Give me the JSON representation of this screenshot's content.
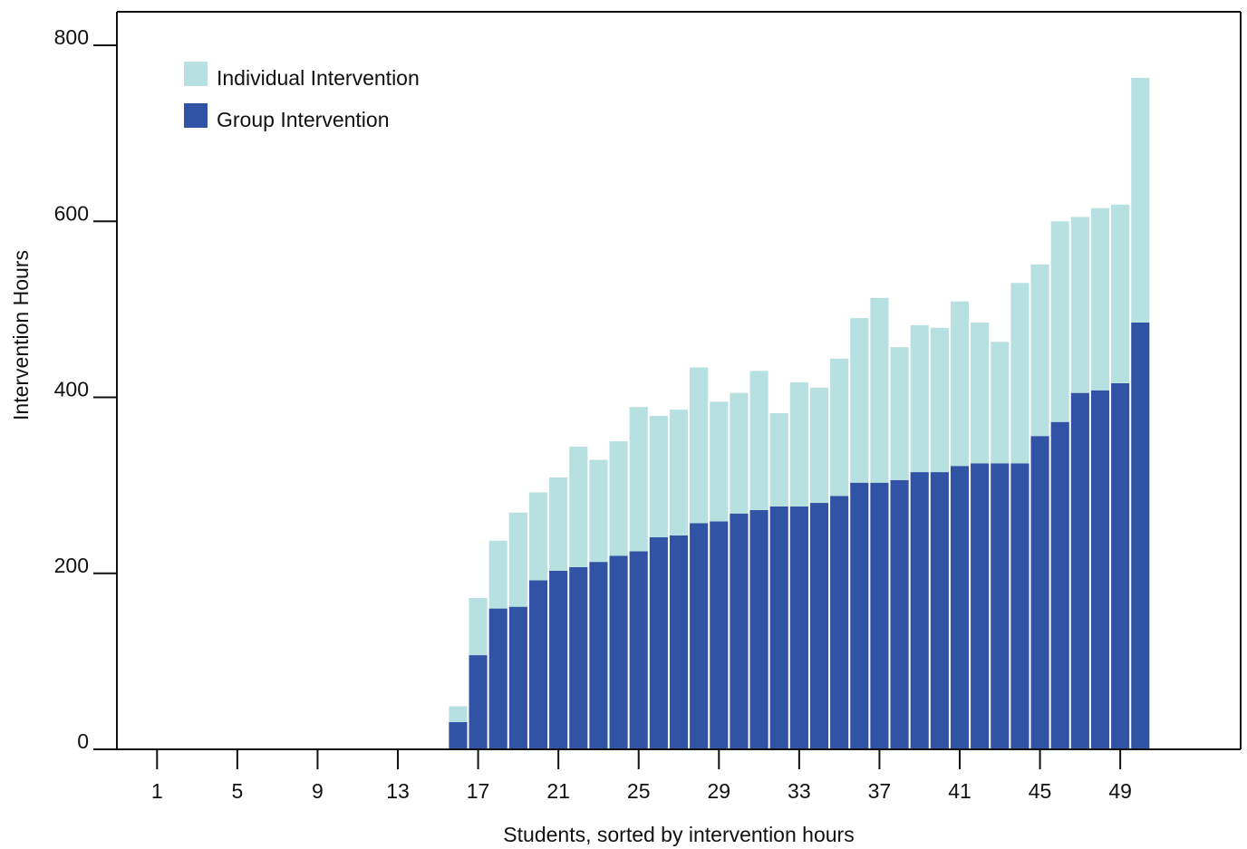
{
  "chart_data": {
    "type": "bar",
    "stacked": true,
    "title": "",
    "xlabel": "Students, sorted by intervention hours",
    "ylabel": "Intervention Hours",
    "ylim": [
      0,
      800
    ],
    "yticks": [
      0,
      200,
      400,
      600,
      800
    ],
    "xticks": [
      1,
      5,
      9,
      13,
      17,
      21,
      25,
      29,
      33,
      37,
      41,
      45,
      49
    ],
    "xlim": [
      -1,
      55
    ],
    "legend_position": "top-left",
    "categories": [
      1,
      2,
      3,
      4,
      5,
      6,
      7,
      8,
      9,
      10,
      11,
      12,
      13,
      14,
      15,
      16,
      17,
      18,
      19,
      20,
      21,
      22,
      23,
      24,
      25,
      26,
      27,
      28,
      29,
      30,
      31,
      32,
      33,
      34,
      35,
      36,
      37,
      38,
      39,
      40,
      41,
      42,
      43,
      44,
      45,
      46,
      47,
      48,
      49,
      50
    ],
    "series": [
      {
        "name": "Group Intervention",
        "color": "#3153a5",
        "values": [
          0,
          0,
          0,
          0,
          0,
          0,
          0,
          0,
          0,
          0,
          0,
          0,
          0,
          0,
          0,
          31,
          107,
          160,
          162,
          192,
          203,
          207,
          213,
          220,
          225,
          241,
          243,
          257,
          259,
          268,
          272,
          276,
          276,
          280,
          288,
          303,
          303,
          306,
          315,
          315,
          322,
          325,
          325,
          325,
          356,
          372,
          405,
          408,
          416,
          485
        ]
      },
      {
        "name": "Individual Intervention",
        "color": "#b7e1e0",
        "values": [
          0,
          0,
          0,
          0,
          0,
          0,
          0,
          0,
          0,
          0,
          0,
          0,
          0,
          0,
          0,
          18,
          65,
          77,
          107,
          100,
          106,
          137,
          116,
          130,
          164,
          138,
          143,
          177,
          136,
          137,
          158,
          106,
          141,
          131,
          156,
          187,
          210,
          151,
          167,
          164,
          187,
          160,
          138,
          205,
          195,
          228,
          200,
          207,
          203,
          278
        ]
      }
    ]
  }
}
